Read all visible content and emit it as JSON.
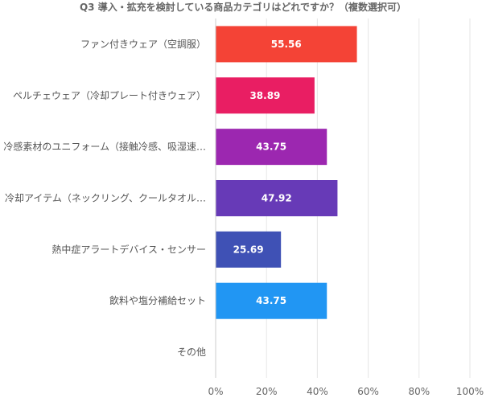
{
  "chart_data": {
    "type": "bar",
    "orientation": "horizontal",
    "title": "Q3 導入・拡充を検討している商品カテゴリはどれですか？（複数選択可）",
    "categories": [
      "ファン付きウェア（空調服）",
      "ペルチェウェア（冷却プレート付きウェア）",
      "冷感素材のユニフォーム（接触冷感、吸湿速…",
      "冷却アイテム（ネックリング、クールタオル…",
      "熱中症アラートデバイス・センサー",
      "飲料や塩分補給セット",
      "その他"
    ],
    "values": [
      55.56,
      38.89,
      43.75,
      47.92,
      25.69,
      43.75,
      0
    ],
    "value_labels": [
      "55.56",
      "38.89",
      "43.75",
      "47.92",
      "25.69",
      "43.75",
      ""
    ],
    "colors": [
      "#F44336",
      "#E91E63",
      "#9C27B0",
      "#673AB7",
      "#3F51B5",
      "#2196F3",
      "#03A9F4"
    ],
    "xlim": [
      0,
      100
    ],
    "x_ticks": [
      "0%",
      "20%",
      "40%",
      "60%",
      "80%",
      "100%"
    ],
    "x_tick_values": [
      0,
      20,
      40,
      60,
      80,
      100
    ],
    "grid": true,
    "legend": "none"
  }
}
